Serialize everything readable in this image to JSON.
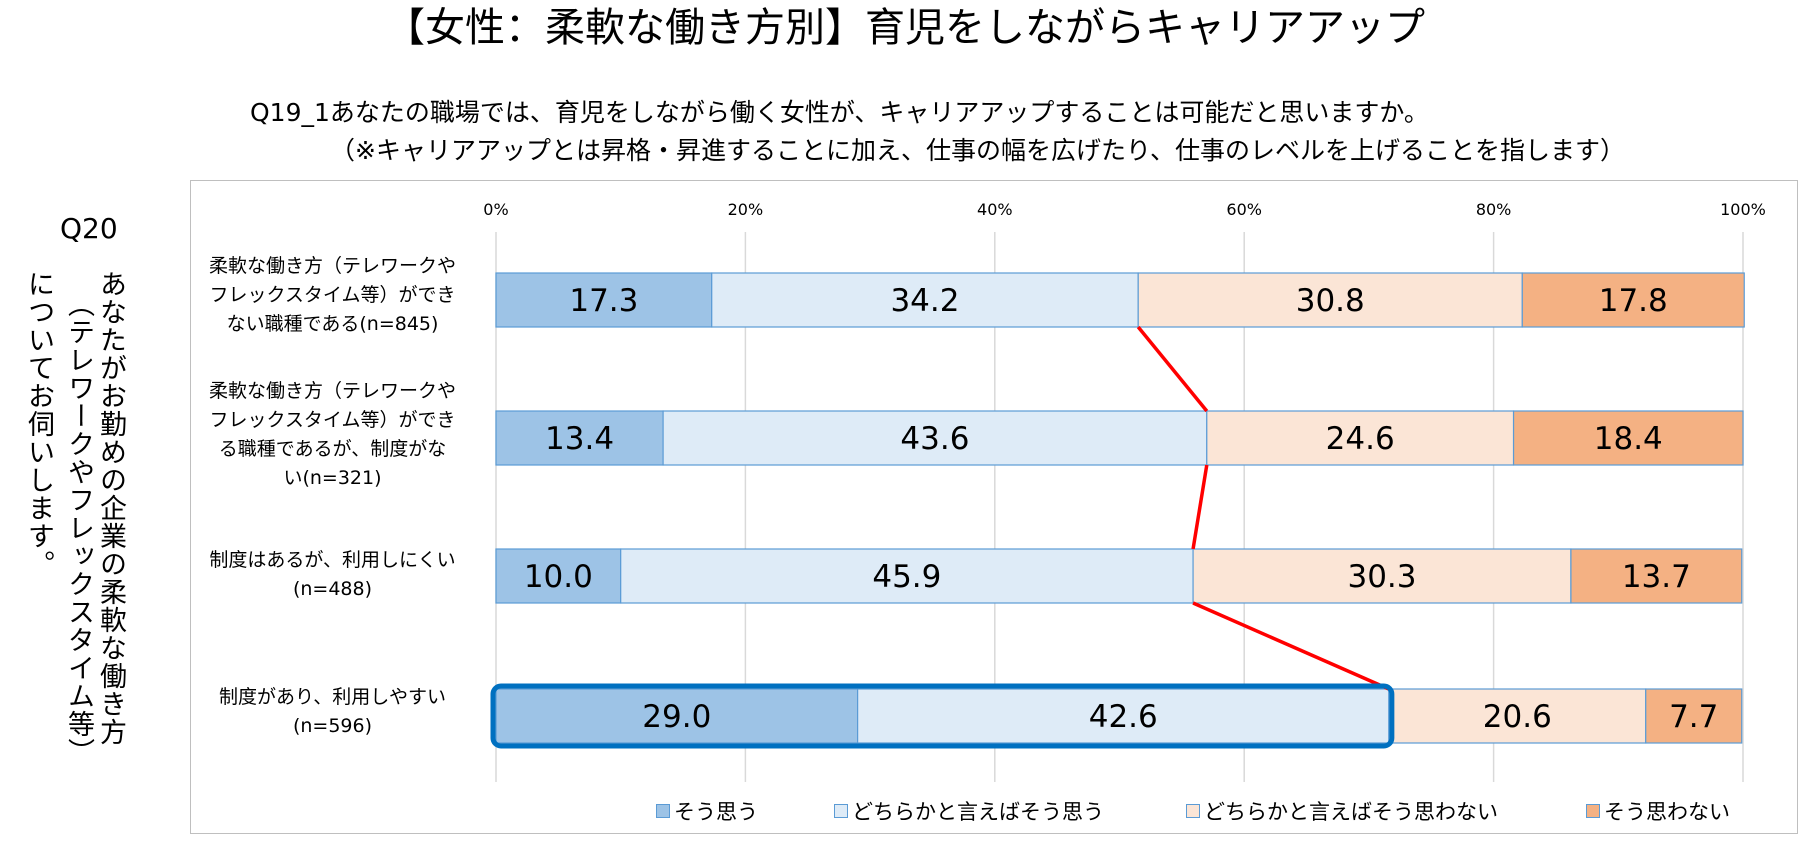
{
  "title": "【女性：柔軟な働き方別】育児をしながらキャリアアップ",
  "question": {
    "line1": "Q19_1あなたの職場では、育児をしながら働く女性が、キャリアアップすることは可能だと思いますか。",
    "line2": "（※キャリアアップとは昇格・昇進することに加え、仕事の幅を広げたり、仕事のレベルを上げることを指します）"
  },
  "sidebar": {
    "code": "Q20",
    "line1": "あなたがお勤めの企業の柔軟な働き方",
    "line2": "（テレワークやフレックスタイム等）",
    "line3": "についてお伺いします。"
  },
  "chart_data": {
    "type": "bar",
    "orientation": "horizontal",
    "stacked": true,
    "xlim": [
      0,
      100
    ],
    "x_ticks": [
      "0%",
      "20%",
      "40%",
      "60%",
      "80%",
      "100%"
    ],
    "grid": true,
    "legend_position": "bottom",
    "categories": [
      [
        "柔軟な働き方（テレワークや",
        "フレックスタイム等）ができ",
        "ない職種である(n=845)"
      ],
      [
        "柔軟な働き方（テレワークや",
        "フレックスタイム等）ができ",
        "る職種であるが、制度がな",
        "い(n=321)"
      ],
      [
        "制度はあるが、利用しにくい",
        "(n=488)"
      ],
      [
        "制度があり、利用しやすい",
        "(n=596)"
      ]
    ],
    "series": [
      {
        "name": "そう思う",
        "color": "#9dc3e6",
        "values": [
          17.3,
          13.4,
          10.0,
          29.0
        ],
        "labels": [
          "17.3",
          "13.4",
          "10.0",
          "29.0"
        ]
      },
      {
        "name": "どちらかと言えばそう思う",
        "color": "#deebf7",
        "values": [
          34.2,
          43.6,
          45.9,
          42.6
        ],
        "labels": [
          "34.2",
          "43.6",
          "45.9",
          "42.6"
        ]
      },
      {
        "name": "どちらかと言えばそう思わない",
        "color": "#fbe5d6",
        "values": [
          30.8,
          24.6,
          30.3,
          20.6
        ],
        "labels": [
          "30.8",
          "24.6",
          "30.3",
          "20.6"
        ]
      },
      {
        "name": "そう思わない",
        "color": "#f4b183",
        "values": [
          17.8,
          18.4,
          13.7,
          7.7
        ],
        "labels": [
          "17.8",
          "18.4",
          "13.7",
          "7.7"
        ]
      }
    ],
    "connector_color": "#ff0000",
    "highlight_color": "#0070c0",
    "highlight_category_index": 3
  }
}
